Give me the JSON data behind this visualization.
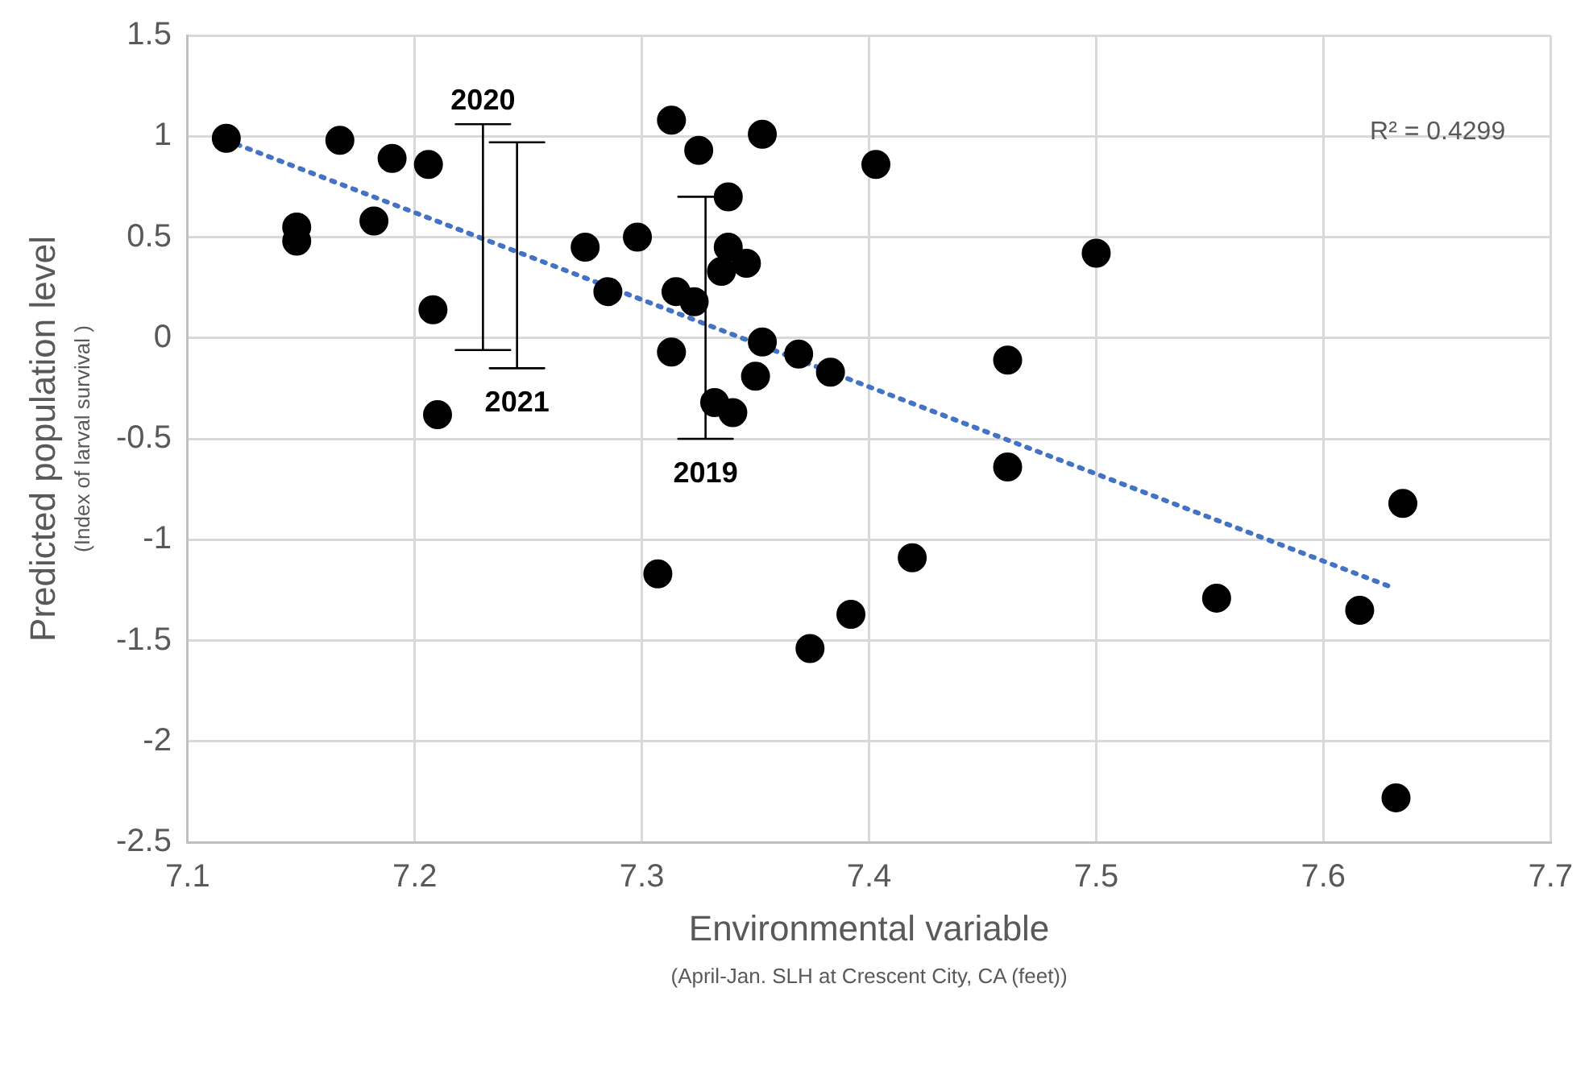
{
  "chart_data": {
    "type": "scatter",
    "xlabel": "Environmental variable",
    "ylabel": "Predicted population level",
    "annotations": [
      "R² = 0.4299",
      "(Index of larval survival )",
      "(April-Jan. SLH at Crescent City, CA (feet))",
      {
        "text": "2020",
        "x": 7.23,
        "y": 1.06
      },
      {
        "text": "2021",
        "x": 7.245,
        "y": -0.15
      },
      {
        "text": "2019",
        "x": 7.328,
        "y": -0.5
      }
    ],
    "xlim": [
      7.1,
      7.7
    ],
    "xticks": [
      7.1,
      7.2,
      7.3,
      7.4,
      7.5,
      7.6,
      7.7
    ],
    "ylim": [
      -2.5,
      1.5
    ],
    "yticks": [
      -2.5,
      -2,
      -1.5,
      -1,
      -0.5,
      0,
      0.5,
      1,
      1.5
    ],
    "grid": true,
    "legend": false,
    "marker": "circle",
    "series": [
      {
        "type": "scatter",
        "color": "#000000",
        "x": [
          7.117,
          7.167,
          7.19,
          7.206,
          7.148,
          7.148,
          7.182,
          7.208,
          7.21,
          7.275,
          7.285,
          7.298,
          7.313,
          7.325,
          7.353,
          7.403,
          7.338,
          7.338,
          7.346,
          7.335,
          7.315,
          7.323,
          7.353,
          7.369,
          7.383,
          7.313,
          7.35,
          7.332,
          7.34,
          7.5,
          7.461,
          7.461,
          7.307,
          7.374,
          7.392,
          7.419,
          7.553,
          7.616,
          7.635,
          7.632
        ],
        "values": [
          0.99,
          0.98,
          0.89,
          0.86,
          0.55,
          0.48,
          0.58,
          0.14,
          -0.38,
          0.45,
          0.23,
          0.5,
          1.08,
          0.93,
          1.01,
          0.86,
          0.7,
          0.45,
          0.37,
          0.33,
          0.23,
          0.18,
          -0.02,
          -0.08,
          -0.17,
          -0.07,
          -0.19,
          -0.32,
          -0.37,
          0.42,
          -0.11,
          -0.64,
          -1.17,
          -1.54,
          -1.37,
          -1.09,
          -1.29,
          -1.35,
          -0.82,
          -2.28
        ]
      },
      {
        "type": "line",
        "color": "#000000",
        "line_style": "solid",
        "marker": "none",
        "x": [
          7.218,
          7.242,
          7.23,
          7.23,
          7.218,
          7.242
        ],
        "values": [
          1.06,
          1.06,
          1.06,
          -0.06,
          -0.06,
          -0.06
        ]
      },
      {
        "type": "line",
        "color": "#000000",
        "line_style": "solid",
        "marker": "none",
        "x": [
          7.233,
          7.257,
          7.245,
          7.245,
          7.233,
          7.257
        ],
        "values": [
          0.97,
          0.97,
          0.97,
          -0.15,
          -0.15,
          -0.15
        ]
      },
      {
        "type": "line",
        "color": "#000000",
        "line_style": "solid",
        "marker": "none",
        "x": [
          7.316,
          7.34,
          7.328,
          7.328,
          7.316,
          7.34
        ],
        "values": [
          0.7,
          0.7,
          0.7,
          -0.5,
          -0.5,
          -0.5
        ]
      },
      {
        "type": "line",
        "color": "#4472c4",
        "line_style": "dotted",
        "marker": "none",
        "x": [
          7.117,
          7.631
        ],
        "values": [
          0.98,
          -1.24
        ]
      }
    ]
  }
}
